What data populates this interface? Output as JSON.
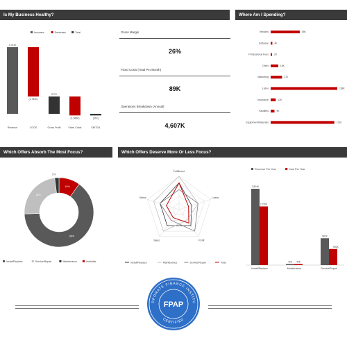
{
  "headers": {
    "health": "Is My Business Healthy?",
    "spending": "Where Am I Spending?",
    "absorb": "Which Offers Absorb The Most Focus?",
    "deserve": "Which Offers Deserve More Or Less Focus?"
  },
  "kpis": [
    {
      "label": "Gross Margin",
      "value": "26%"
    },
    {
      "label": "Fixed Costs (Total Per Month)",
      "value": "89K"
    },
    {
      "label": "Operations Breakdown (Annual)",
      "value": "4,607K"
    }
  ],
  "colors": {
    "red": "#c00000",
    "dark": "#555555",
    "black": "#333333",
    "light": "#bfbfbf",
    "header": "#3a3a3a",
    "badge": "#2e6fc7"
  },
  "chart_data": [
    {
      "type": "bar",
      "subtype": "waterfall",
      "legend": [
        "Increase",
        "Decrease",
        "Total"
      ],
      "categories": [
        "Revenue",
        "COGS",
        "Gross Profit",
        "Fixed Costs",
        "EBITDA"
      ],
      "values": [
        3.761,
        -2.784,
        0.977,
        -1.068,
        -0.091
      ],
      "labels": [
        "3,761K",
        "(2,784K)",
        "977K",
        "(1,068K)",
        "(91K)"
      ],
      "kinds": [
        "total",
        "decrease",
        "total",
        "decrease",
        "total"
      ]
    },
    {
      "type": "bar",
      "orientation": "horizontal",
      "categories": [
        "Vehicles",
        "Software",
        "Professional Fees",
        "Other",
        "Marketing",
        "Labor",
        "Insurance",
        "Facilities",
        "Equipment/Materials"
      ],
      "values": [
        69,
        4,
        2,
        18,
        27,
        158,
        12,
        9,
        151
      ],
      "labels": [
        "69K",
        "4K",
        "2K",
        "18K",
        "27K",
        "158K",
        "12K",
        "9K",
        "151K"
      ]
    },
    {
      "type": "pie",
      "subtype": "donut",
      "categories": [
        "Install/Replace",
        "Service/Repair",
        "Maintenance",
        "Available"
      ],
      "values": [
        65,
        24,
        2,
        10
      ],
      "labels": [
        "65%",
        "24%",
        "2%",
        "10%"
      ]
    },
    {
      "type": "radar",
      "axes": [
        "Fulfillment",
        "Leads",
        "Profit",
        "Sales",
        "Stress"
      ],
      "series": [
        {
          "name": "Install/Replace",
          "values": [
            4,
            2,
            3,
            3,
            3
          ]
        },
        {
          "name": "Maintenance",
          "values": [
            5,
            3,
            2,
            4,
            4
          ]
        },
        {
          "name": "Service/Repair",
          "values": [
            3,
            3,
            4,
            2,
            3
          ]
        },
        {
          "name": "Total",
          "values": [
            4,
            1.5,
            2.5,
            1.5,
            2
          ]
        }
      ]
    },
    {
      "type": "bar",
      "legend": [
        "Revenue Per Year",
        "Cost Per Year"
      ],
      "categories": [
        "Install/Replace",
        "Maintenance",
        "Service/Repair"
      ],
      "series": [
        {
          "name": "Revenue Per Year",
          "values": [
            2.804,
            0.04,
            0.987
          ],
          "labels": [
            "2,804K",
            "40K",
            "987K"
          ]
        },
        {
          "name": "Cost Per Year",
          "values": [
            2.155,
            0.04,
            0.592
          ],
          "labels": [
            "2,155K",
            "40K",
            "592K"
          ]
        }
      ]
    }
  ],
  "badge": {
    "text": "FPAP",
    "ring_top": "CORPORATE FINANCE INSTITUTE",
    "ring_bottom": "CERTIFIED"
  }
}
